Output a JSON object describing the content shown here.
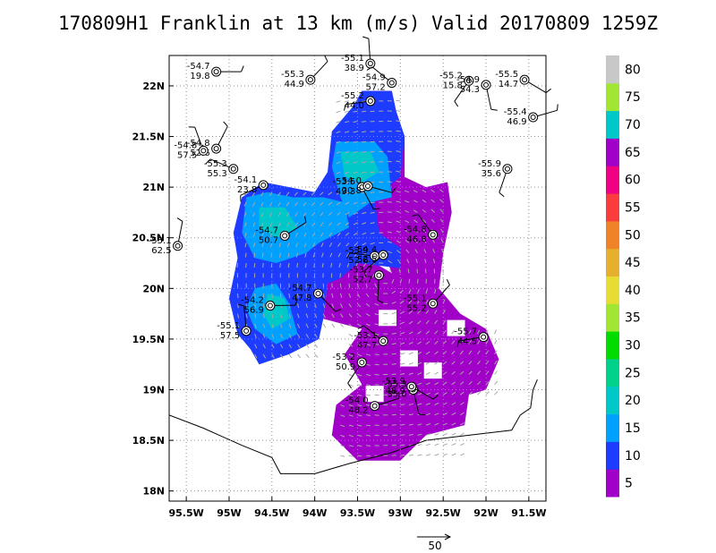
{
  "title": "170809H1 Franklin at 13 km (m/s) Valid 20170809 1259Z",
  "chart_data": {
    "type": "heatmap",
    "title": "170809H1 Franklin at 13 km (m/s) Valid 20170809 1259Z",
    "xlabel": "",
    "ylabel": "",
    "xlim": [
      -95.7,
      -91.3
    ],
    "ylim": [
      17.9,
      22.3
    ],
    "grid": true,
    "x_ticks": [
      -95.5,
      -95,
      -94.5,
      -94,
      -93.5,
      -93,
      -92.5,
      -92,
      -91.5
    ],
    "x_tick_labels": [
      "95.5W",
      "95W",
      "94.5W",
      "94W",
      "93.5W",
      "93W",
      "92.5W",
      "92W",
      "91.5W"
    ],
    "y_ticks": [
      18,
      18.5,
      19,
      19.5,
      20,
      20.5,
      21,
      21.5,
      22
    ],
    "y_tick_labels": [
      "18N",
      "18.5N",
      "19N",
      "19.5N",
      "20N",
      "20.5N",
      "21N",
      "21.5N",
      "22N"
    ],
    "colorbar": {
      "levels": [
        5,
        10,
        15,
        20,
        25,
        30,
        35,
        40,
        45,
        50,
        55,
        60,
        65,
        70,
        75,
        80
      ],
      "colors": [
        "#a000c8",
        "#1e3cff",
        "#00a0ff",
        "#00c8c8",
        "#00d28c",
        "#00dc00",
        "#a0e632",
        "#e6dc32",
        "#e6af2d",
        "#f08228",
        "#fa3c3c",
        "#f00082",
        "#a000c8",
        "#00c8c8",
        "#a0e632",
        "#c8c8c8"
      ]
    },
    "reference_vector": "50",
    "observations": [
      {
        "lon": -95.15,
        "lat": 22.14,
        "temp": "-54.7",
        "wind": "19.8"
      },
      {
        "lon": -94.05,
        "lat": 22.06,
        "temp": "-55.3",
        "wind": "44.9"
      },
      {
        "lon": -93.35,
        "lat": 22.22,
        "temp": "-55.1",
        "wind": "38.9"
      },
      {
        "lon": -93.1,
        "lat": 22.03,
        "temp": "-54.9",
        "wind": "57.2"
      },
      {
        "lon": -93.35,
        "lat": 21.85,
        "temp": "-55.2",
        "wind": "44.0"
      },
      {
        "lon": -92.2,
        "lat": 22.05,
        "temp": "-55.2",
        "wind": "15.8"
      },
      {
        "lon": -92.0,
        "lat": 22.01,
        "temp": "-54.9",
        "wind": "54.3"
      },
      {
        "lon": -91.55,
        "lat": 22.06,
        "temp": "-55.5",
        "wind": "14.7"
      },
      {
        "lon": -91.45,
        "lat": 21.69,
        "temp": "-55.4",
        "wind": "46.9"
      },
      {
        "lon": -95.15,
        "lat": 21.38,
        "temp": "-54.8",
        "wind": "52.6"
      },
      {
        "lon": -95.3,
        "lat": 21.36,
        "temp": "-54.8",
        "wind": "57.5"
      },
      {
        "lon": -94.95,
        "lat": 21.18,
        "temp": "-55.3",
        "wind": "55.3"
      },
      {
        "lon": -94.6,
        "lat": 21.02,
        "temp": "-54.1",
        "wind": "23.8"
      },
      {
        "lon": -91.75,
        "lat": 21.18,
        "temp": "-55.9",
        "wind": "35.6"
      },
      {
        "lon": -93.45,
        "lat": 21.0,
        "temp": "-53.5",
        "wind": "49.3"
      },
      {
        "lon": -93.38,
        "lat": 21.01,
        "temp": "-54.0",
        "wind": "20.8"
      },
      {
        "lon": -94.35,
        "lat": 20.52,
        "temp": "-54.7",
        "wind": "50.7"
      },
      {
        "lon": -95.6,
        "lat": 20.42,
        "temp": "-55.1",
        "wind": "62.5"
      },
      {
        "lon": -92.62,
        "lat": 20.53,
        "temp": "-54.8",
        "wind": "46.8"
      },
      {
        "lon": -93.3,
        "lat": 20.32,
        "temp": "-53.9",
        "wind": "52.6"
      },
      {
        "lon": -93.2,
        "lat": 20.33,
        "temp": "-54.4",
        "wind": "52.5"
      },
      {
        "lon": -93.25,
        "lat": 20.13,
        "temp": "-53.7",
        "wind": "52.7"
      },
      {
        "lon": -93.96,
        "lat": 19.95,
        "temp": "-54.7",
        "wind": "47.8"
      },
      {
        "lon": -94.52,
        "lat": 19.83,
        "temp": "-54.2",
        "wind": "56.9"
      },
      {
        "lon": -92.62,
        "lat": 19.85,
        "temp": "-55.1",
        "wind": "55.2"
      },
      {
        "lon": -94.8,
        "lat": 19.58,
        "temp": "-55.1",
        "wind": "57.5"
      },
      {
        "lon": -93.2,
        "lat": 19.48,
        "temp": "-53.1",
        "wind": "47.7"
      },
      {
        "lon": -92.03,
        "lat": 19.52,
        "temp": "-55.7",
        "wind": "44.5"
      },
      {
        "lon": -93.45,
        "lat": 19.27,
        "temp": "-53.2",
        "wind": "50.9"
      },
      {
        "lon": -92.85,
        "lat": 19.0,
        "temp": "-55.3",
        "wind": "35.0"
      },
      {
        "lon": -92.87,
        "lat": 19.03,
        "temp": "-53.9",
        "wind": "48.9"
      },
      {
        "lon": -93.3,
        "lat": 18.84,
        "temp": "-54.0",
        "wind": "48.2"
      }
    ]
  }
}
